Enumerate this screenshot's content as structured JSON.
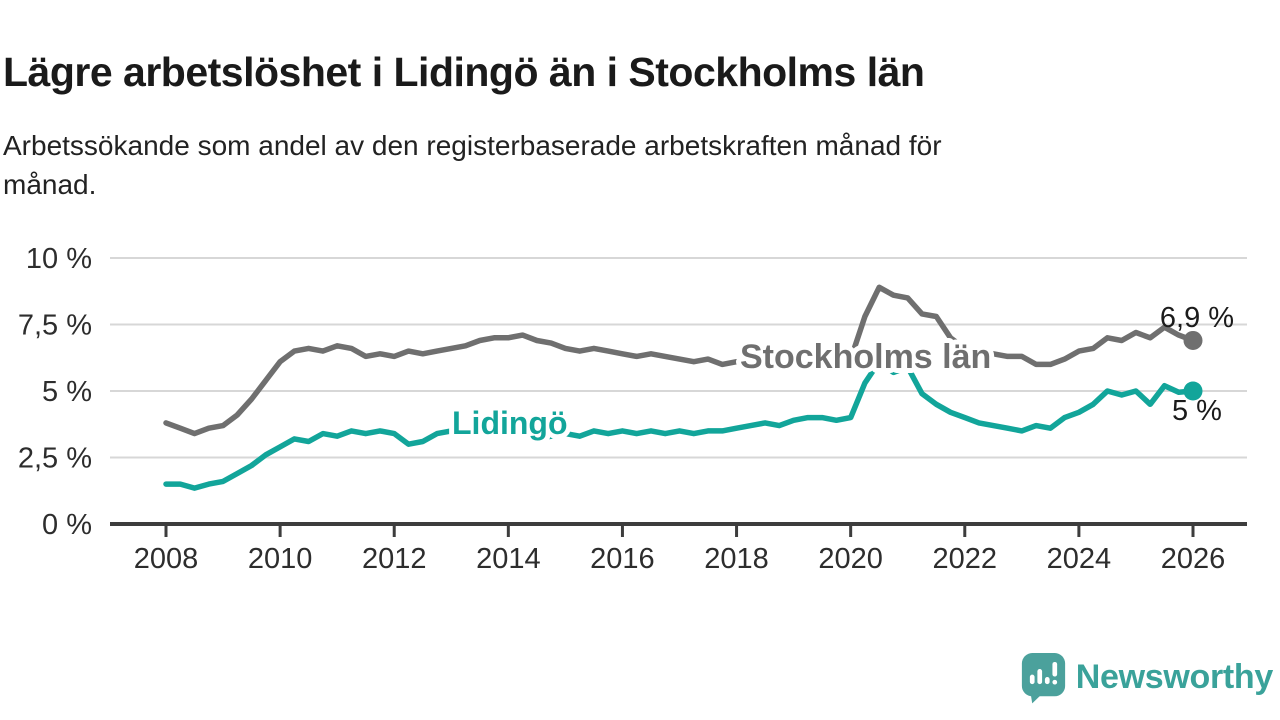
{
  "header": {
    "title": "Lägre arbetslöshet i Lidingö än i Stockholms län",
    "subtitle": "Arbetssökande som andel av den registerbaserade arbetskraften månad för månad.",
    "subtitle_lines": [
      "Arbetssökande som andel av den registerbaserade arbetskraften månad för",
      "månad."
    ]
  },
  "footer": {
    "brand": "Newsworthy",
    "brand_color": "#3aa29a",
    "logo_icon": "newsworthy-speech-bubble-bar-chart-icon",
    "logo_color": "#4ba19c"
  },
  "chart_data": {
    "type": "line",
    "title": "Lägre arbetslöshet i Lidingö än i Stockholms län",
    "subtitle": "Arbetssökande som andel av den registerbaserade arbetskraften månad för månad.",
    "unit": "%",
    "grid": "horizontal",
    "legend_position": "inline-labels",
    "x": {
      "start": 2008,
      "step": 0.25,
      "count": 73
    },
    "x_axis": {
      "tick_years": [
        2008,
        2010,
        2012,
        2014,
        2016,
        2018,
        2020,
        2022,
        2024,
        2026
      ],
      "tick_labels": [
        "2008",
        "2010",
        "2012",
        "2014",
        "2016",
        "2018",
        "2020",
        "2022",
        "2024",
        "2026"
      ]
    },
    "y_axis": {
      "range": [
        0,
        10
      ],
      "ticks": [
        {
          "value": 0,
          "label": "0 %"
        },
        {
          "value": 2.5,
          "label": "2,5 %"
        },
        {
          "value": 5,
          "label": "5 %"
        },
        {
          "value": 7.5,
          "label": "7,5 %"
        },
        {
          "value": 10,
          "label": "10 %"
        }
      ]
    },
    "axis_color": "#3d3d3d",
    "grid_color": "#d7d7d7",
    "text_color": "#2d2d2d",
    "value_label_color": "#1b1b1b",
    "series": [
      {
        "name": "Stockholms län",
        "color": "#6f6f6f",
        "end_label": "6,9 %",
        "end_value": 6.9,
        "values": [
          3.8,
          3.6,
          3.4,
          3.6,
          3.7,
          4.1,
          4.7,
          5.4,
          6.1,
          6.5,
          6.6,
          6.5,
          6.7,
          6.6,
          6.3,
          6.4,
          6.3,
          6.5,
          6.4,
          6.5,
          6.6,
          6.7,
          6.9,
          7.0,
          7.0,
          7.1,
          6.9,
          6.8,
          6.6,
          6.5,
          6.6,
          6.5,
          6.4,
          6.3,
          6.4,
          6.3,
          6.2,
          6.1,
          6.2,
          6.0,
          6.1,
          6.0,
          6.1,
          6.0,
          6.1,
          6.0,
          6.1,
          5.9,
          6.2,
          7.8,
          8.9,
          8.6,
          8.5,
          7.9,
          7.8,
          7.0,
          6.6,
          6.5,
          6.4,
          6.3,
          6.3,
          6.0,
          6.0,
          6.2,
          6.5,
          6.6,
          7.0,
          6.9,
          7.2,
          7.0,
          7.4,
          7.1,
          6.9
        ]
      },
      {
        "name": "Lidingö",
        "color": "#12a59a",
        "end_label": "5 %",
        "end_value": 5,
        "values": [
          1.5,
          1.5,
          1.35,
          1.5,
          1.6,
          1.9,
          2.2,
          2.6,
          2.9,
          3.2,
          3.1,
          3.4,
          3.3,
          3.5,
          3.4,
          3.5,
          3.4,
          3.0,
          3.1,
          3.4,
          3.5,
          3.5,
          3.5,
          3.4,
          3.5,
          3.4,
          3.2,
          3.3,
          3.4,
          3.3,
          3.5,
          3.4,
          3.5,
          3.4,
          3.5,
          3.4,
          3.5,
          3.4,
          3.5,
          3.5,
          3.6,
          3.7,
          3.8,
          3.7,
          3.9,
          4.0,
          4.0,
          3.9,
          4.0,
          5.3,
          6.1,
          5.7,
          5.9,
          4.9,
          4.5,
          4.2,
          4.0,
          3.8,
          3.7,
          3.6,
          3.5,
          3.7,
          3.6,
          4.0,
          4.2,
          4.5,
          5.0,
          4.85,
          5.0,
          4.5,
          5.2,
          4.95,
          5.0
        ]
      }
    ]
  }
}
